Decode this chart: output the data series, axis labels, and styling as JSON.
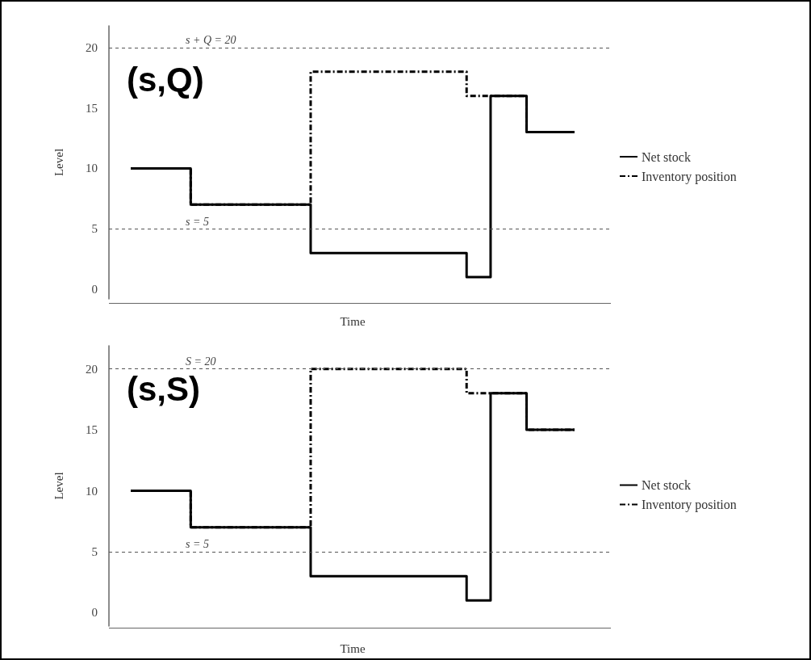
{
  "chart_data": [
    {
      "type": "step",
      "title": "(s,Q)",
      "xlabel": "Time",
      "ylabel": "Level",
      "categories": [
        null,
        null,
        null,
        null,
        null,
        null,
        null,
        null,
        null,
        null,
        null,
        null,
        null,
        null,
        null,
        null,
        null,
        null,
        null,
        null,
        null,
        null,
        null,
        null,
        null,
        null,
        null,
        null,
        null,
        null,
        null,
        null,
        null,
        null,
        null,
        null,
        null,
        null,
        null,
        null,
        null,
        null,
        null,
        null,
        null,
        null,
        null,
        null,
        null,
        null,
        null,
        null,
        null,
        null,
        null,
        null,
        null,
        null,
        null,
        null,
        null,
        null,
        null,
        null,
        null,
        null,
        null,
        null,
        null,
        null,
        null,
        null,
        null,
        null,
        null
      ],
      "series": [
        {
          "name": "Net stock",
          "color": "#000000",
          "line_style": "solid",
          "values": [
            10,
            10,
            10,
            10,
            10,
            10,
            10,
            10,
            10,
            10,
            10,
            7,
            7,
            7,
            7,
            7,
            7,
            7,
            7,
            7,
            7,
            7,
            7,
            7,
            7,
            7,
            7,
            7,
            7,
            7,
            7,
            3,
            3,
            3,
            3,
            3,
            3,
            3,
            3,
            3,
            3,
            3,
            3,
            3,
            3,
            3,
            3,
            3,
            3,
            3,
            3,
            3,
            3,
            3,
            3,
            3,
            3,
            1,
            1,
            1,
            1,
            16,
            16,
            16,
            16,
            16,
            16,
            13,
            13,
            13,
            13,
            13,
            13,
            13,
            13
          ]
        },
        {
          "name": "Inventory position",
          "color": "#000000",
          "line_style": "dashed",
          "values": [
            10,
            10,
            10,
            10,
            10,
            10,
            10,
            10,
            10,
            10,
            10,
            7,
            7,
            7,
            7,
            7,
            7,
            7,
            7,
            7,
            7,
            7,
            7,
            7,
            7,
            7,
            7,
            7,
            7,
            7,
            7,
            18,
            18,
            18,
            18,
            18,
            18,
            18,
            18,
            18,
            18,
            18,
            18,
            18,
            18,
            18,
            18,
            18,
            18,
            18,
            18,
            18,
            18,
            18,
            18,
            18,
            18,
            16,
            16,
            16,
            16,
            16,
            16,
            16,
            16,
            16,
            16,
            13,
            13,
            13,
            13,
            13,
            13,
            13,
            13
          ]
        }
      ],
      "ylim": [
        -0.8,
        21.8
      ],
      "yticks": [
        0,
        5,
        10,
        15,
        20
      ],
      "tick_labels": "y",
      "grid": false,
      "legend": "right",
      "ref_lines": [
        {
          "axis": "y",
          "value": 20,
          "label": "s + Q = 20",
          "color": "#555555",
          "line_style": "dashed"
        },
        {
          "axis": "y",
          "value": 5,
          "label": "s = 5",
          "color": "#555555",
          "line_style": "dashed"
        }
      ]
    },
    {
      "type": "step",
      "title": "(s,S)",
      "xlabel": "Time",
      "ylabel": "Level",
      "categories": [
        null,
        null,
        null,
        null,
        null,
        null,
        null,
        null,
        null,
        null,
        null,
        null,
        null,
        null,
        null,
        null,
        null,
        null,
        null,
        null,
        null,
        null,
        null,
        null,
        null,
        null,
        null,
        null,
        null,
        null,
        null,
        null,
        null,
        null,
        null,
        null,
        null,
        null,
        null,
        null,
        null,
        null,
        null,
        null,
        null,
        null,
        null,
        null,
        null,
        null,
        null,
        null,
        null,
        null,
        null,
        null,
        null,
        null,
        null,
        null,
        null,
        null,
        null,
        null,
        null,
        null,
        null,
        null,
        null,
        null,
        null,
        null,
        null,
        null,
        null
      ],
      "series": [
        {
          "name": "Net stock",
          "color": "#000000",
          "line_style": "solid",
          "values": [
            10,
            10,
            10,
            10,
            10,
            10,
            10,
            10,
            10,
            10,
            10,
            7,
            7,
            7,
            7,
            7,
            7,
            7,
            7,
            7,
            7,
            7,
            7,
            7,
            7,
            7,
            7,
            7,
            7,
            7,
            7,
            3,
            3,
            3,
            3,
            3,
            3,
            3,
            3,
            3,
            3,
            3,
            3,
            3,
            3,
            3,
            3,
            3,
            3,
            3,
            3,
            3,
            3,
            3,
            3,
            3,
            3,
            1,
            1,
            1,
            1,
            18,
            18,
            18,
            18,
            18,
            18,
            15,
            15,
            15,
            15,
            15,
            15,
            15,
            15
          ]
        },
        {
          "name": "Inventory position",
          "color": "#000000",
          "line_style": "dashed",
          "values": [
            10,
            10,
            10,
            10,
            10,
            10,
            10,
            10,
            10,
            10,
            10,
            7,
            7,
            7,
            7,
            7,
            7,
            7,
            7,
            7,
            7,
            7,
            7,
            7,
            7,
            7,
            7,
            7,
            7,
            7,
            7,
            20,
            20,
            20,
            20,
            20,
            20,
            20,
            20,
            20,
            20,
            20,
            20,
            20,
            20,
            20,
            20,
            20,
            20,
            20,
            20,
            20,
            20,
            20,
            20,
            20,
            20,
            18,
            18,
            18,
            18,
            18,
            18,
            18,
            18,
            18,
            18,
            15,
            15,
            15,
            15,
            15,
            15,
            15,
            15
          ]
        }
      ],
      "ylim": [
        -1.1,
        21.9
      ],
      "yticks": [
        0,
        5,
        10,
        15,
        20
      ],
      "tick_labels": "y",
      "grid": false,
      "legend": "right",
      "ref_lines": [
        {
          "axis": "y",
          "value": 20,
          "label": "S = 20",
          "color": "#555555",
          "line_style": "dashed"
        },
        {
          "axis": "y",
          "value": 5,
          "label": "s = 5",
          "color": "#555555",
          "line_style": "dashed"
        }
      ]
    }
  ]
}
